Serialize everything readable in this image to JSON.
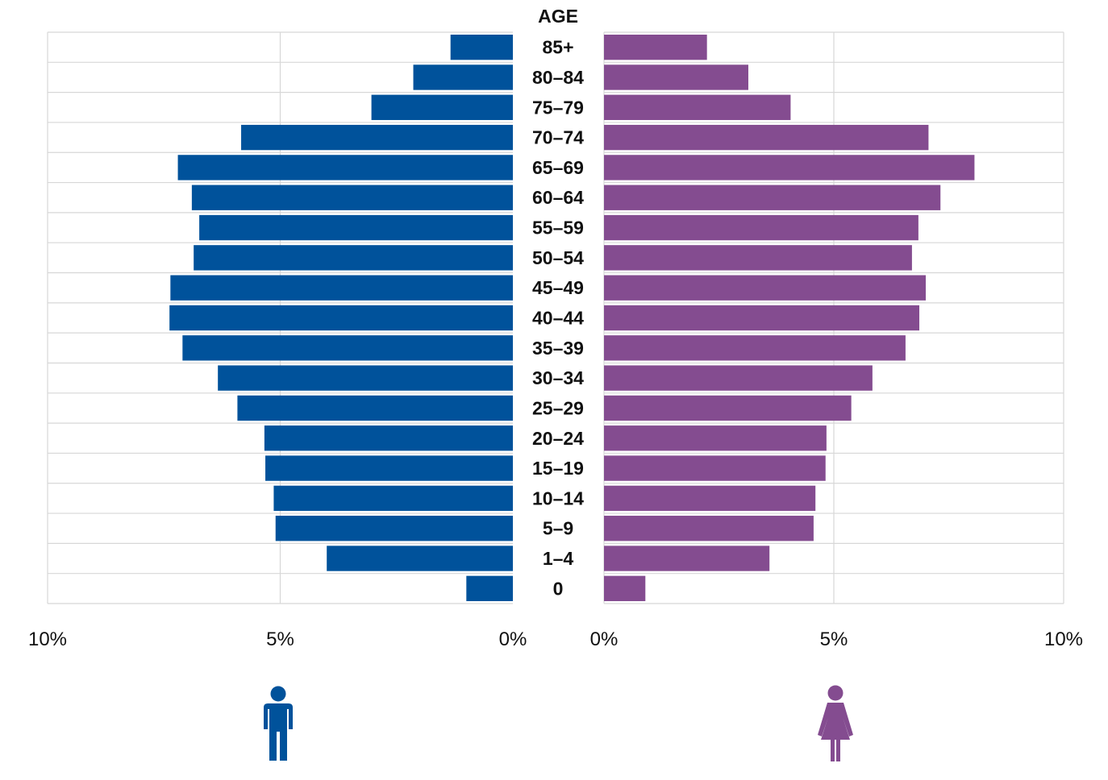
{
  "chart_data": {
    "type": "bar",
    "subtype": "population-pyramid",
    "title": "AGE",
    "categories": [
      "85+",
      "80–84",
      "75–79",
      "70–74",
      "65–69",
      "60–64",
      "55–59",
      "50–54",
      "45–49",
      "40–44",
      "35–39",
      "30–34",
      "25–29",
      "20–24",
      "15–19",
      "10–14",
      "5–9",
      "1–4",
      "0"
    ],
    "series": [
      {
        "name": "male",
        "side": "left",
        "color": "#00529b",
        "values": [
          1.34,
          2.14,
          3.04,
          5.84,
          7.2,
          6.9,
          6.74,
          6.86,
          7.36,
          7.38,
          7.1,
          6.34,
          5.92,
          5.34,
          5.32,
          5.14,
          5.1,
          4.0,
          1.0
        ]
      },
      {
        "name": "female",
        "side": "right",
        "color": "#844c90",
        "values": [
          2.24,
          3.14,
          4.06,
          7.06,
          8.06,
          7.32,
          6.84,
          6.7,
          7.0,
          6.86,
          6.56,
          5.84,
          5.38,
          4.84,
          4.82,
          4.6,
          4.56,
          3.6,
          0.9
        ]
      }
    ],
    "xlim": [
      0,
      10
    ],
    "left_ticks": [
      "10%",
      "5%",
      "0%"
    ],
    "right_ticks": [
      "0%",
      "5%",
      "10%"
    ],
    "grid": true,
    "legend": [
      {
        "name": "male",
        "icon": "male-person-icon",
        "position": "below-left"
      },
      {
        "name": "female",
        "icon": "female-person-icon",
        "position": "below-right"
      }
    ]
  }
}
